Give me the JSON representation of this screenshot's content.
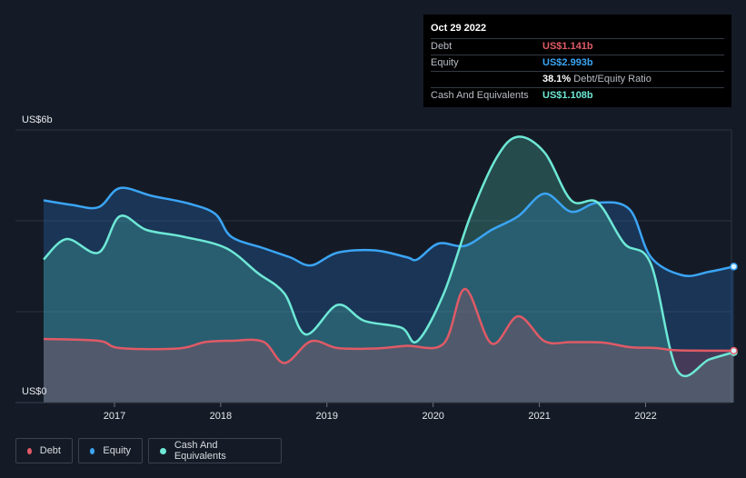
{
  "tooltip": {
    "date": "Oct 29 2022",
    "rows": [
      {
        "label": "Debt",
        "value": "US$1.141b",
        "color": "#e05a66"
      },
      {
        "label": "Equity",
        "value": "US$2.993b",
        "color": "#3ba5f5"
      },
      {
        "label": "",
        "ratio_value": "38.1%",
        "ratio_label": "Debt/Equity Ratio"
      },
      {
        "label": "Cash And Equivalents",
        "value": "US$1.108b",
        "color": "#6ee8d6"
      }
    ]
  },
  "y_axis": {
    "top_label": "US$6b",
    "bottom_label": "US$0"
  },
  "legend": [
    {
      "label": "Debt",
      "color": "#e05a66"
    },
    {
      "label": "Equity",
      "color": "#3ba5f5"
    },
    {
      "label": "Cash And Equivalents",
      "color": "#6ee8d6"
    }
  ],
  "chart_data": {
    "type": "area",
    "x_ticks": [
      "2017",
      "2018",
      "2019",
      "2020",
      "2021",
      "2022"
    ],
    "ylim": [
      0,
      6
    ],
    "y_unit": "US$ billions",
    "grid": true,
    "legend_position": "bottom-left",
    "series": [
      {
        "name": "Equity",
        "color": "#3ba5f5",
        "points": [
          [
            2016.3,
            4.45
          ],
          [
            2016.6,
            4.35
          ],
          [
            2016.85,
            4.3
          ],
          [
            2017.05,
            4.72
          ],
          [
            2017.35,
            4.55
          ],
          [
            2017.7,
            4.38
          ],
          [
            2017.95,
            4.15
          ],
          [
            2018.1,
            3.65
          ],
          [
            2018.4,
            3.4
          ],
          [
            2018.65,
            3.2
          ],
          [
            2018.85,
            3.02
          ],
          [
            2019.1,
            3.3
          ],
          [
            2019.45,
            3.35
          ],
          [
            2019.75,
            3.2
          ],
          [
            2019.85,
            3.15
          ],
          [
            2020.05,
            3.5
          ],
          [
            2020.3,
            3.45
          ],
          [
            2020.55,
            3.8
          ],
          [
            2020.8,
            4.1
          ],
          [
            2021.05,
            4.6
          ],
          [
            2021.3,
            4.2
          ],
          [
            2021.55,
            4.4
          ],
          [
            2021.85,
            4.25
          ],
          [
            2022.05,
            3.2
          ],
          [
            2022.35,
            2.8
          ],
          [
            2022.6,
            2.88
          ],
          [
            2022.83,
            2.993
          ]
        ]
      },
      {
        "name": "Cash And Equivalents",
        "color": "#6ee8d6",
        "points": [
          [
            2016.3,
            3.15
          ],
          [
            2016.55,
            3.6
          ],
          [
            2016.85,
            3.3
          ],
          [
            2017.05,
            4.1
          ],
          [
            2017.3,
            3.8
          ],
          [
            2017.65,
            3.65
          ],
          [
            2018.05,
            3.4
          ],
          [
            2018.35,
            2.85
          ],
          [
            2018.6,
            2.4
          ],
          [
            2018.8,
            1.5
          ],
          [
            2019.1,
            2.15
          ],
          [
            2019.35,
            1.8
          ],
          [
            2019.7,
            1.65
          ],
          [
            2019.85,
            1.35
          ],
          [
            2020.1,
            2.4
          ],
          [
            2020.35,
            4.1
          ],
          [
            2020.6,
            5.4
          ],
          [
            2020.8,
            5.85
          ],
          [
            2021.05,
            5.5
          ],
          [
            2021.3,
            4.45
          ],
          [
            2021.55,
            4.4
          ],
          [
            2021.8,
            3.5
          ],
          [
            2022.05,
            3.05
          ],
          [
            2022.3,
            0.7
          ],
          [
            2022.6,
            0.95
          ],
          [
            2022.83,
            1.108
          ]
        ]
      },
      {
        "name": "Debt",
        "color": "#e05a66",
        "points": [
          [
            2016.3,
            1.4
          ],
          [
            2016.85,
            1.36
          ],
          [
            2017.05,
            1.2
          ],
          [
            2017.6,
            1.19
          ],
          [
            2017.85,
            1.33
          ],
          [
            2018.1,
            1.36
          ],
          [
            2018.4,
            1.34
          ],
          [
            2018.6,
            0.87
          ],
          [
            2018.85,
            1.35
          ],
          [
            2019.1,
            1.2
          ],
          [
            2019.45,
            1.19
          ],
          [
            2019.75,
            1.25
          ],
          [
            2020.1,
            1.3
          ],
          [
            2020.3,
            2.5
          ],
          [
            2020.55,
            1.3
          ],
          [
            2020.8,
            1.9
          ],
          [
            2021.05,
            1.35
          ],
          [
            2021.3,
            1.33
          ],
          [
            2021.6,
            1.32
          ],
          [
            2021.85,
            1.22
          ],
          [
            2022.1,
            1.2
          ],
          [
            2022.3,
            1.15
          ],
          [
            2022.83,
            1.141
          ]
        ]
      }
    ]
  }
}
